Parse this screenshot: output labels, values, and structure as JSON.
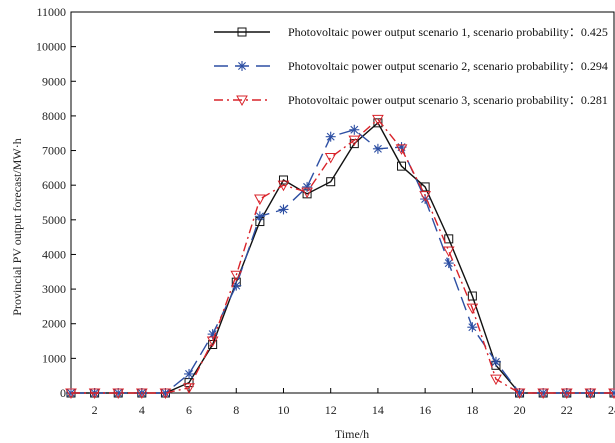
{
  "chart_data": {
    "type": "line",
    "title": "",
    "xlabel": "Time/h",
    "ylabel": "Provincial PV output forecast/MW·h",
    "xlim": [
      1,
      24
    ],
    "ylim": [
      0,
      11000
    ],
    "x_ticks": [
      2,
      4,
      6,
      8,
      10,
      12,
      14,
      16,
      18,
      20,
      22,
      24
    ],
    "y_ticks": [
      0,
      1000,
      2000,
      3000,
      4000,
      5000,
      6000,
      7000,
      8000,
      9000,
      10000,
      11000
    ],
    "x_tick_labels": [
      "2",
      "4",
      "6",
      "8",
      "10",
      "12",
      "14",
      "16",
      "18",
      "20",
      "22",
      "24"
    ],
    "y_tick_labels": [
      "0",
      "1000",
      "2000",
      "3000",
      "4000",
      "5000",
      "6000",
      "7000",
      "8000",
      "9000",
      "10000",
      "11000"
    ],
    "grid": false,
    "legend_position": "top-right",
    "x": [
      1,
      2,
      3,
      4,
      5,
      6,
      7,
      8,
      9,
      10,
      11,
      12,
      13,
      14,
      15,
      16,
      17,
      18,
      19,
      20,
      21,
      22,
      23,
      24
    ],
    "series": [
      {
        "name": "Photovoltaic power output scenario 1, scenario probability：0.425",
        "color": "#111111",
        "line_style": "solid",
        "marker": "square",
        "values": [
          0,
          0,
          0,
          0,
          0,
          300,
          1400,
          3200,
          4950,
          6150,
          5750,
          6100,
          7200,
          7800,
          6550,
          5950,
          4450,
          2800,
          800,
          0,
          0,
          0,
          0,
          0
        ]
      },
      {
        "name": "Photovoltaic power output scenario 2, scenario probability：0.294",
        "color": "#2d4fa3",
        "line_style": "dashed",
        "marker": "asterisk",
        "values": [
          0,
          0,
          0,
          0,
          0,
          550,
          1700,
          3100,
          5100,
          5300,
          5950,
          7400,
          7600,
          7050,
          7100,
          5600,
          3750,
          1900,
          900,
          0,
          0,
          0,
          0,
          0
        ]
      },
      {
        "name": "Photovoltaic power output scenario 3, scenario probability：0.281",
        "color": "#d9232a",
        "line_style": "dashdot",
        "marker": "triangle-down",
        "values": [
          0,
          0,
          0,
          0,
          0,
          150,
          1500,
          3400,
          5600,
          6000,
          5800,
          6800,
          7300,
          7900,
          7050,
          5700,
          4100,
          2450,
          400,
          0,
          0,
          0,
          0,
          0
        ]
      }
    ]
  }
}
